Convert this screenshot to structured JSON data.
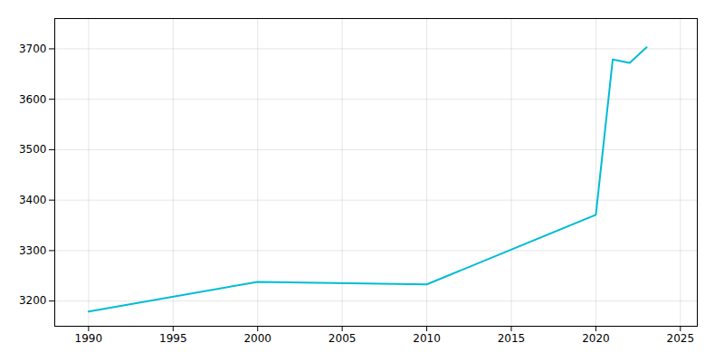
{
  "chart_data": {
    "type": "line",
    "x": [
      1990,
      2000,
      2010,
      2020,
      2021,
      2022,
      2023
    ],
    "values": [
      3179,
      3238,
      3233,
      3371,
      3679,
      3672,
      3703
    ],
    "color": "#00BCD4",
    "xlim": [
      1988,
      2026
    ],
    "ylim": [
      3150,
      3760
    ],
    "xticks": [
      1990,
      1995,
      2000,
      2005,
      2010,
      2015,
      2020,
      2025
    ],
    "yticks": [
      3200,
      3300,
      3400,
      3500,
      3600,
      3700
    ],
    "grid": true
  }
}
